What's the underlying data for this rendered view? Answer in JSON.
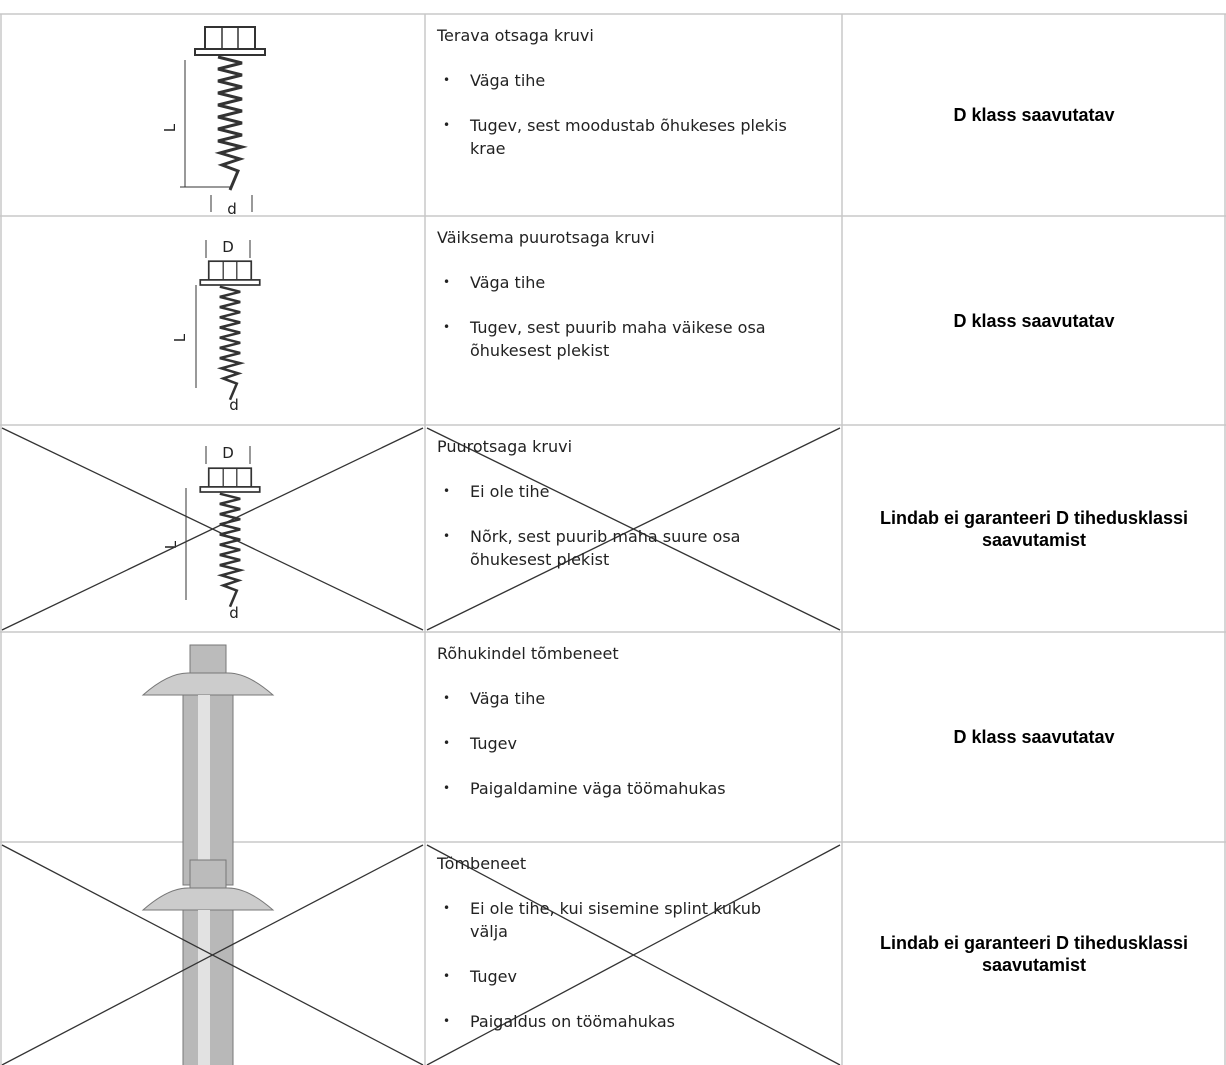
{
  "rows": [
    {
      "drawing_labels": [
        "L",
        "d"
      ],
      "title": "Terava otsaga kruvi",
      "bullets": [
        "Väga tihe",
        "Tugev, sest moodustab õhukeses plekis krae"
      ],
      "result": "D klass saavutatav"
    },
    {
      "drawing_labels": [
        "D",
        "L",
        "d"
      ],
      "title": "Väiksema puurotsaga kruvi",
      "bullets": [
        "Väga tihe",
        "Tugev, sest puurib maha väikese osa õhukesest plekist"
      ],
      "result": "D klass saavutatav"
    },
    {
      "drawing_labels": [
        "D",
        "L",
        "d"
      ],
      "title": "Puurotsaga kruvi",
      "bullets": [
        "Ei ole tihe",
        "Nõrk, sest puurib maha suure osa õhukesest plekist"
      ],
      "result": "Lindab ei garanteeri D tihedusklassi saavutamist"
    },
    {
      "title": "Rõhukindel tõmbeneet",
      "bullets": [
        "Väga tihe",
        "Tugev",
        "Paigaldamine väga töömahukas"
      ],
      "result": "D klass saavutatav"
    },
    {
      "title": "Tõmbeneet",
      "bullets": [
        "Ei ole tihe, kui sisemine splint kukub välja",
        "Tugev",
        "Paigaldus on töömahukas"
      ],
      "result": "Lindab ei garanteeri D tihedusklassi saavutamist"
    }
  ]
}
